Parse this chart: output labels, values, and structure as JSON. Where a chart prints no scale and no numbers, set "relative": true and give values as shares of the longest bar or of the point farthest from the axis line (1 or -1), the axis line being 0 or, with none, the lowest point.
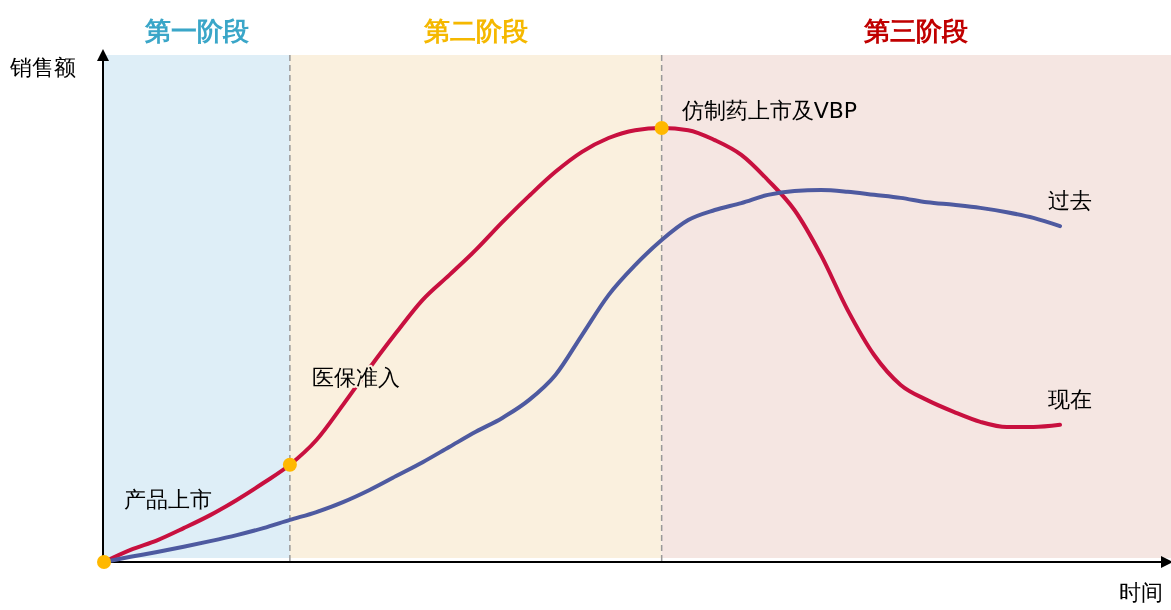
{
  "chart_data": {
    "type": "line",
    "relative": true,
    "xlabel": "时间",
    "ylabel": "销售额",
    "line_style": "solid",
    "categories": [
      null,
      null,
      null,
      null,
      null,
      null,
      null,
      null,
      null,
      null,
      null,
      null,
      null,
      null,
      null,
      null,
      null,
      null,
      null,
      null,
      null,
      null,
      null,
      null,
      null,
      null,
      null,
      null,
      null,
      null,
      null,
      null,
      null,
      null,
      null,
      null,
      null
    ],
    "series": [
      {
        "name": "现在",
        "color": "#c8103f",
        "values": [
          0,
          0.028,
          0.05,
          0.078,
          0.108,
          0.143,
          0.182,
          0.224,
          0.281,
          0.362,
          0.447,
          0.528,
          0.604,
          0.661,
          0.719,
          0.783,
          0.843,
          0.899,
          0.945,
          0.977,
          0.995,
          1,
          0.995,
          0.972,
          0.938,
          0.88,
          0.811,
          0.707,
          0.581,
          0.477,
          0.408,
          0.373,
          0.346,
          0.323,
          0.311,
          0.311,
          0.316
        ]
      },
      {
        "name": "过去",
        "color": "#4e5aa0",
        "values": [
          0,
          0.012,
          0.023,
          0.035,
          0.048,
          0.062,
          0.078,
          0.097,
          0.115,
          0.138,
          0.166,
          0.198,
          0.23,
          0.265,
          0.3,
          0.332,
          0.373,
          0.431,
          0.523,
          0.615,
          0.684,
          0.742,
          0.788,
          0.811,
          0.827,
          0.846,
          0.855,
          0.857,
          0.853,
          0.846,
          0.839,
          0.829,
          0.823,
          0.816,
          0.806,
          0.793,
          0.774
        ]
      }
    ],
    "annotations": [
      "第一阶段",
      "第二阶段",
      "第三阶段",
      "产品上市",
      "医保准入",
      "仿制药上市及VBP"
    ]
  }
}
